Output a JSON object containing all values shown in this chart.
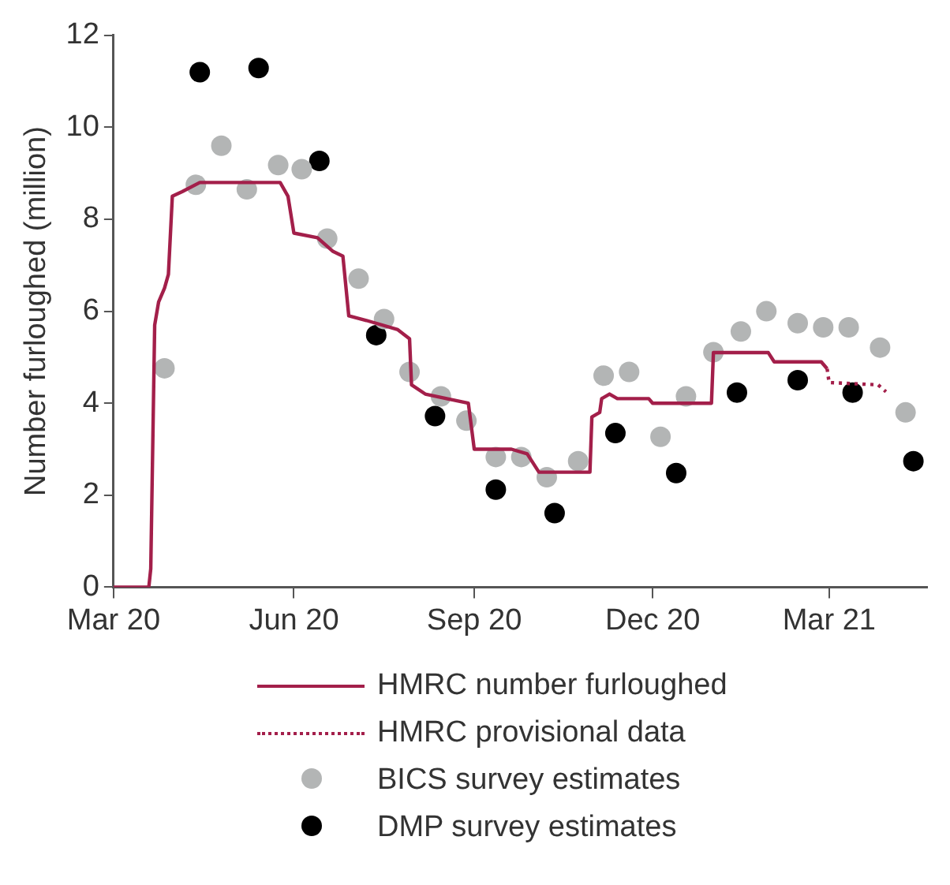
{
  "chart_data": {
    "type": "line",
    "ylabel": "Number furloughed (million)",
    "xlim": [
      "2020-03-01",
      "2021-04-20"
    ],
    "xticks": [
      {
        "value": "2020-03-01",
        "label": "Mar 20"
      },
      {
        "value": "2020-06-01",
        "label": "Jun 20"
      },
      {
        "value": "2020-09-01",
        "label": "Sep 20"
      },
      {
        "value": "2020-12-01",
        "label": "Dec 20"
      },
      {
        "value": "2021-03-01",
        "label": "Mar 21"
      }
    ],
    "ylim": [
      0,
      12
    ],
    "yticks": [
      0,
      2,
      4,
      6,
      8,
      10,
      12
    ],
    "grid": false,
    "legend": "bottom",
    "series": [
      {
        "name": "HMRC number furloughed",
        "color": "#a31f4a",
        "line_style": "solid",
        "marker": "none",
        "x": [
          "2020-03-01",
          "2020-03-19",
          "2020-03-20",
          "2020-03-22",
          "2020-03-24",
          "2020-03-27",
          "2020-03-29",
          "2020-03-31",
          "2020-04-05",
          "2020-04-14",
          "2020-05-25",
          "2020-05-29",
          "2020-06-01",
          "2020-06-13",
          "2020-06-21",
          "2020-06-26",
          "2020-06-29",
          "2020-07-08",
          "2020-07-24",
          "2020-07-30",
          "2020-07-31",
          "2020-08-07",
          "2020-08-29",
          "2020-09-01",
          "2020-09-20",
          "2020-09-28",
          "2020-10-04",
          "2020-10-30",
          "2020-10-31",
          "2020-11-04",
          "2020-11-05",
          "2020-11-09",
          "2020-11-13",
          "2020-11-29",
          "2020-12-01",
          "2020-12-31",
          "2021-01-01",
          "2021-01-29",
          "2021-02-01",
          "2021-02-25",
          "2021-02-28"
        ],
        "values": [
          0,
          0,
          0.4,
          5.7,
          6.2,
          6.5,
          6.8,
          8.5,
          8.6,
          8.8,
          8.8,
          8.5,
          7.7,
          7.6,
          7.3,
          7.2,
          5.9,
          5.8,
          5.6,
          5.4,
          4.4,
          4.2,
          4.0,
          3.0,
          3.0,
          2.9,
          2.5,
          2.5,
          3.7,
          3.8,
          4.1,
          4.2,
          4.1,
          4.1,
          4.0,
          4.0,
          5.1,
          5.1,
          4.9,
          4.9,
          4.75
        ]
      },
      {
        "name": "HMRC provisional data",
        "color": "#a31f4a",
        "line_style": "dotted",
        "marker": "none",
        "x": [
          "2021-02-28",
          "2021-03-01",
          "2021-03-26",
          "2021-03-30"
        ],
        "values": [
          4.75,
          4.45,
          4.4,
          4.25
        ]
      },
      {
        "type": "scatter",
        "name": "BICS survey estimates",
        "color": "#b3b5b5",
        "marker": "circle",
        "x": [
          "2020-03-27",
          "2020-04-12",
          "2020-04-25",
          "2020-05-08",
          "2020-05-24",
          "2020-06-05",
          "2020-06-18",
          "2020-07-04",
          "2020-07-17",
          "2020-07-30",
          "2020-08-15",
          "2020-08-28",
          "2020-09-12",
          "2020-09-25",
          "2020-10-08",
          "2020-10-24",
          "2020-11-06",
          "2020-11-19",
          "2020-12-05",
          "2020-12-18",
          "2021-01-01",
          "2021-01-15",
          "2021-01-28",
          "2021-02-13",
          "2021-02-26",
          "2021-03-11",
          "2021-03-27",
          "2021-04-09"
        ],
        "values": [
          4.76,
          8.75,
          9.6,
          8.65,
          9.18,
          9.09,
          7.58,
          6.71,
          5.83,
          4.68,
          4.15,
          3.62,
          2.83,
          2.83,
          2.39,
          2.74,
          4.6,
          4.68,
          3.27,
          4.15,
          5.11,
          5.56,
          6.0,
          5.74,
          5.65,
          5.65,
          5.21,
          3.8
        ]
      },
      {
        "type": "scatter",
        "name": "DMP survey estimates",
        "color": "#000000",
        "marker": "circle",
        "x": [
          "2020-04-14",
          "2020-05-14",
          "2020-06-14",
          "2020-07-13",
          "2020-08-12",
          "2020-09-12",
          "2020-10-12",
          "2020-11-12",
          "2020-12-13",
          "2021-01-13",
          "2021-02-13",
          "2021-03-13",
          "2021-04-13"
        ],
        "values": [
          11.2,
          11.29,
          9.27,
          5.48,
          3.72,
          2.12,
          1.61,
          3.35,
          2.48,
          4.23,
          4.5,
          4.23,
          2.74
        ]
      }
    ]
  }
}
